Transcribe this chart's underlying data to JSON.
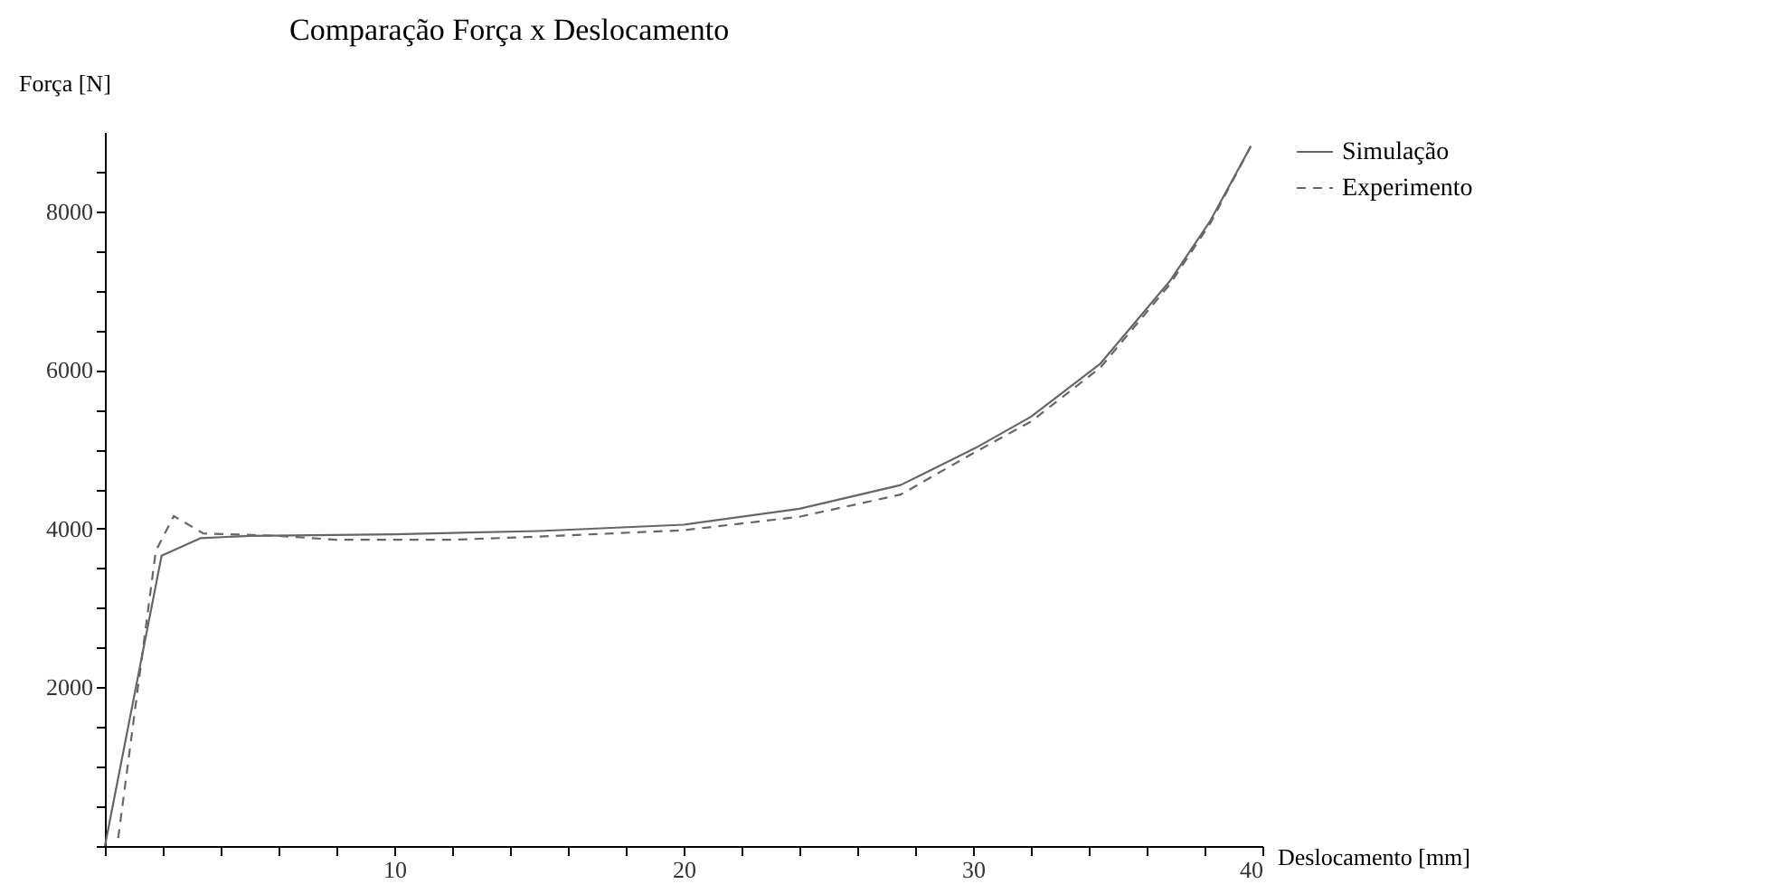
{
  "chart_data": {
    "type": "line",
    "title": "Comparação Força x Deslocamento",
    "xlabel": "Deslocamento [mm]",
    "ylabel": "Força [N]",
    "xlim": [
      0,
      40
    ],
    "ylim": [
      0,
      9000
    ],
    "xticks": [
      {
        "value": 0,
        "label": null
      },
      {
        "value": 2,
        "label": null
      },
      {
        "value": 4,
        "label": null
      },
      {
        "value": 6,
        "label": null
      },
      {
        "value": 8,
        "label": null
      },
      10,
      {
        "value": 12,
        "label": null
      },
      {
        "value": 14,
        "label": null
      },
      {
        "value": 16,
        "label": null
      },
      {
        "value": 18,
        "label": null
      },
      20,
      {
        "value": 22,
        "label": null
      },
      {
        "value": 24,
        "label": null
      },
      {
        "value": 26,
        "label": null
      },
      {
        "value": 28,
        "label": null
      },
      30,
      {
        "value": 32,
        "label": null
      },
      {
        "value": 34,
        "label": null
      },
      {
        "value": 36,
        "label": null
      },
      {
        "value": 38,
        "label": null
      },
      40
    ],
    "yticks": [
      {
        "value": 0,
        "label": null
      },
      {
        "value": 500,
        "label": null
      },
      {
        "value": 1000,
        "label": null
      },
      {
        "value": 1500,
        "label": null
      },
      2000,
      {
        "value": 2500,
        "label": null
      },
      {
        "value": 3000,
        "label": null
      },
      {
        "value": 3500,
        "label": null
      },
      4000,
      {
        "value": 4500,
        "label": null
      },
      {
        "value": 5000,
        "label": null
      },
      {
        "value": 5500,
        "label": null
      },
      6000,
      {
        "value": 6500,
        "label": null
      },
      {
        "value": 7000,
        "label": null
      },
      {
        "value": 7500,
        "label": null
      },
      8000,
      {
        "value": 8500,
        "label": null
      }
    ],
    "grid": false,
    "legend": "right",
    "marker": "none",
    "series": [
      {
        "name": "Simulação",
        "color": "#666666",
        "line_style": "solid",
        "x": [
          0,
          1.96,
          3.3,
          5,
          10,
          15,
          20,
          24,
          27.5,
          30.1,
          32,
          34.4,
          36.8,
          38.2,
          39.6
        ],
        "values": [
          0,
          3660,
          3880,
          3910,
          3930,
          3970,
          4050,
          4250,
          4550,
          5020,
          5410,
          6080,
          7120,
          7880,
          8820
        ]
      },
      {
        "name": "Experimento",
        "color": "#666666",
        "line_style": "dashed",
        "x": [
          0.46,
          1.76,
          2.38,
          3.4,
          6,
          8,
          12,
          15,
          20,
          24,
          27.5,
          30,
          32,
          34.4,
          36.8,
          38.2,
          39.6
        ],
        "values": [
          100,
          3720,
          4160,
          3940,
          3910,
          3860,
          3860,
          3900,
          3980,
          4150,
          4430,
          4950,
          5350,
          6030,
          7080,
          7850,
          8820
        ]
      }
    ]
  }
}
